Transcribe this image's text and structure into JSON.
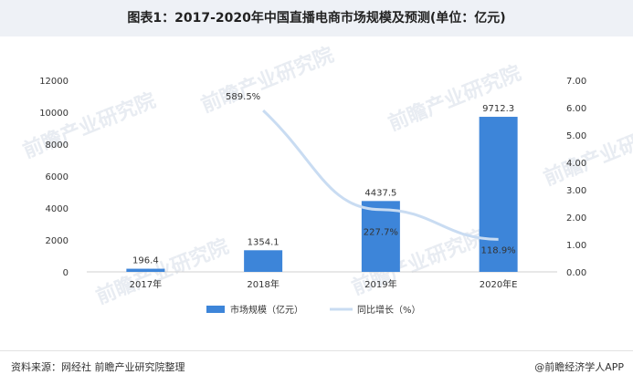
{
  "header": {
    "title": "图表1：2017-2020年中国直播电商市场规模及预测(单位：亿元)"
  },
  "footer": {
    "source": "资料来源：网经社 前瞻产业研究院整理",
    "brand": "@前瞻经济学人APP"
  },
  "watermark": {
    "text": "前瞻产业研究院"
  },
  "chart_data": {
    "type": "bar",
    "categories": [
      "2017年",
      "2018年",
      "2019年",
      "2020年E"
    ],
    "series": [
      {
        "name": "市场规模（亿元）",
        "type": "bar",
        "axis": "left",
        "values": [
          196.4,
          1354.1,
          4437.5,
          9712.3
        ],
        "labels": [
          "196.4",
          "1354.1",
          "4437.5",
          "9712.3"
        ],
        "color": "#3d85d9"
      },
      {
        "name": "同比增长（%）",
        "type": "line",
        "axis": "right",
        "values": [
          null,
          5.895,
          2.277,
          1.189
        ],
        "labels": [
          "",
          "589.5%",
          "227.7%",
          "118.9%"
        ],
        "color": "#c9dcf2"
      }
    ],
    "y_left": {
      "min": 0,
      "max": 12000,
      "ticks": [
        0,
        2000,
        4000,
        6000,
        8000,
        10000,
        12000
      ],
      "tick_labels": [
        "0",
        "2000",
        "4000",
        "6000",
        "8000",
        "10000",
        "12000"
      ]
    },
    "y_right": {
      "min": 0,
      "max": 7,
      "ticks": [
        0,
        1,
        2,
        3,
        4,
        5,
        6,
        7
      ],
      "tick_labels": [
        "0.00",
        "1.00",
        "2.00",
        "3.00",
        "4.00",
        "5.00",
        "6.00",
        "7.00"
      ]
    },
    "grid": false,
    "legend_position": "bottom"
  }
}
